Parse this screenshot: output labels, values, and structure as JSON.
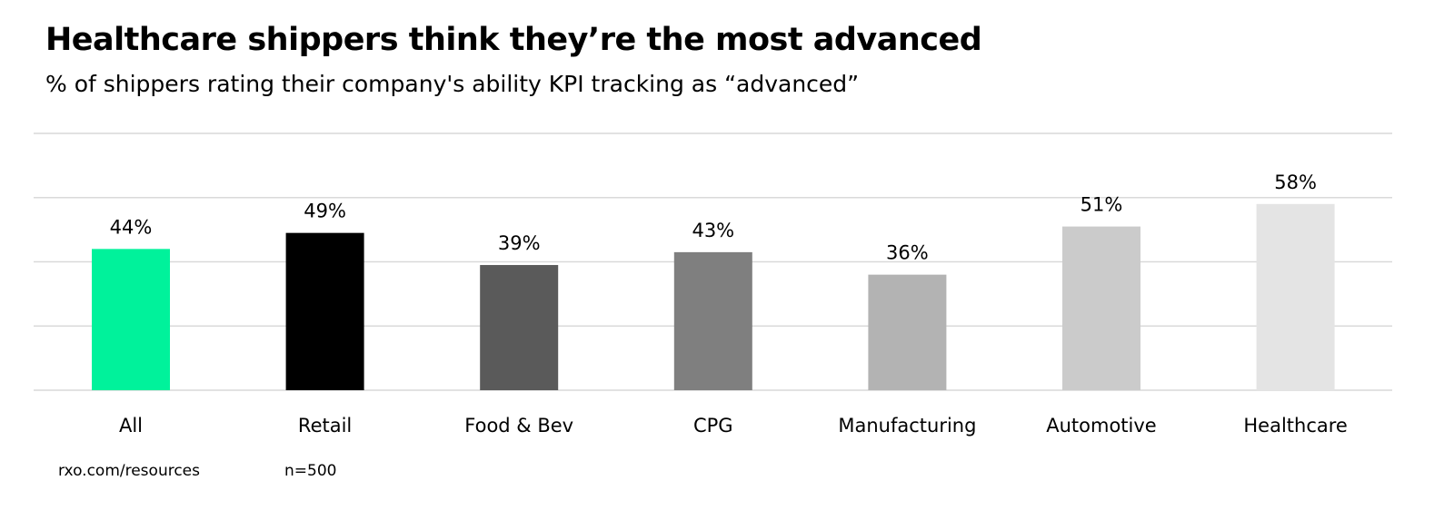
{
  "title": "Healthcare shippers think they’re the most advanced",
  "subtitle": "% of shippers rating their company's ability KPI tracking as “advanced”",
  "footer": {
    "source": "rxo.com/resources",
    "sample": "n=500"
  },
  "chart_data": {
    "type": "bar",
    "categories": [
      "All",
      "Retail",
      "Food & Bev",
      "CPG",
      "Manufacturing",
      "Automotive",
      "Healthcare"
    ],
    "values": [
      44,
      49,
      39,
      43,
      36,
      51,
      58
    ],
    "labels": [
      "44%",
      "49%",
      "39%",
      "43%",
      "36%",
      "51%",
      "58%"
    ],
    "colors": [
      "#00F29B",
      "#000000",
      "#5A5A5A",
      "#7F7F7F",
      "#B3B3B3",
      "#CBCBCB",
      "#E4E4E4"
    ],
    "ylim": [
      0,
      80
    ],
    "gridlines": [
      0,
      20,
      40,
      60,
      80
    ],
    "grid": true,
    "xlabel": "",
    "ylabel": ""
  }
}
